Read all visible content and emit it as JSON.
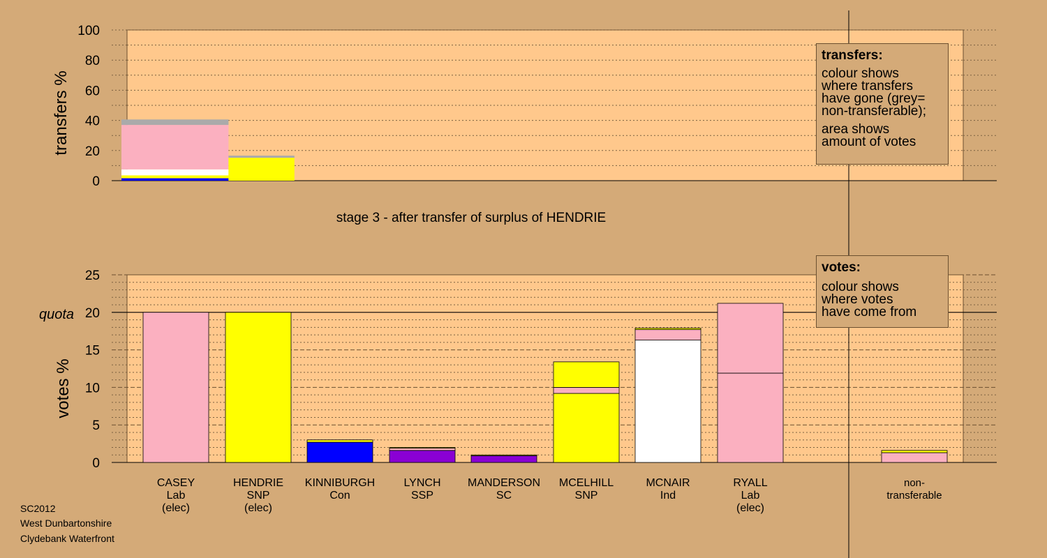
{
  "colors": {
    "background": "#d4aa78",
    "plot_background": "#ffc88c",
    "Lab": "#fbb0c0",
    "SNP": "#ffff00",
    "Con": "#0000ff",
    "SSP": "#8a00d4",
    "SC": "#8a00d4",
    "Ind": "#ffffff",
    "non_transferable": "#aaaaaa"
  },
  "chart_data": [
    {
      "type": "bar",
      "title": "stage 3 - after transfer of surplus of HENDRIE",
      "ylabel": "transfers %",
      "ylim": [
        0,
        100
      ],
      "yticks": [
        0,
        20,
        40,
        60,
        80,
        100
      ],
      "grid": true,
      "columns": [
        {
          "name": "transfer-column-1",
          "x": [
            0,
            1.3
          ],
          "segments": [
            {
              "value": 1.6,
              "color": "Con"
            },
            {
              "value": 1.9,
              "color": "SNP"
            },
            {
              "value": 4.0,
              "color": "Ind"
            },
            {
              "value": 29.5,
              "color": "Lab"
            },
            {
              "value": 3.6,
              "color": "non_transferable"
            }
          ]
        },
        {
          "name": "transfer-column-2",
          "x": [
            1.3,
            2.1
          ],
          "segments": [
            {
              "value": 15.2,
              "color": "SNP"
            },
            {
              "value": 1.4,
              "color": "non_transferable"
            }
          ]
        }
      ]
    },
    {
      "type": "bar",
      "ylabel": "votes %",
      "ylim": [
        0,
        25
      ],
      "yticks": [
        0,
        5,
        10,
        15,
        20,
        25
      ],
      "quota": 20,
      "quota_label": "quota",
      "grid": true,
      "categories": [
        {
          "name": "CASEY",
          "party": "Lab",
          "status": "(elec)",
          "segments": [
            {
              "value": 20.0,
              "color": "Lab"
            }
          ]
        },
        {
          "name": "HENDRIE",
          "party": "SNP",
          "status": "(elec)",
          "segments": [
            {
              "value": 20.0,
              "color": "SNP"
            }
          ]
        },
        {
          "name": "KINNIBURGH",
          "party": "Con",
          "status": "",
          "segments": [
            {
              "value": 2.7,
              "color": "Con"
            },
            {
              "value": 0.3,
              "color": "SNP"
            }
          ]
        },
        {
          "name": "LYNCH",
          "party": "SSP",
          "status": "",
          "segments": [
            {
              "value": 1.6,
              "color": "SSP"
            },
            {
              "value": 0.3,
              "color": "Lab"
            },
            {
              "value": 0.1,
              "color": "SNP"
            }
          ]
        },
        {
          "name": "MANDERSON",
          "party": "SC",
          "status": "",
          "segments": [
            {
              "value": 0.9,
              "color": "SC"
            },
            {
              "value": 0.1,
              "color": "SNP"
            }
          ]
        },
        {
          "name": "MCELHILL",
          "party": "SNP",
          "status": "",
          "segments": [
            {
              "value": 9.2,
              "color": "SNP"
            },
            {
              "value": 0.8,
              "color": "Lab"
            },
            {
              "value": 3.4,
              "color": "SNP"
            }
          ]
        },
        {
          "name": "MCNAIR",
          "party": "Ind",
          "status": "",
          "segments": [
            {
              "value": 16.3,
              "color": "Ind"
            },
            {
              "value": 1.4,
              "color": "Lab"
            },
            {
              "value": 0.2,
              "color": "SNP"
            }
          ]
        },
        {
          "name": "RYALL",
          "party": "Lab",
          "status": "(elec)",
          "segments": [
            {
              "value": 11.9,
              "color": "Lab"
            },
            {
              "value": 9.3,
              "color": "Lab"
            }
          ]
        },
        {
          "name": "non-",
          "party": "transferable",
          "status": "",
          "segments": [
            {
              "value": 1.3,
              "color": "Lab"
            },
            {
              "value": 0.3,
              "color": "SNP"
            }
          ]
        }
      ]
    }
  ],
  "legend_transfers": {
    "title": "transfers:",
    "lines": [
      "colour shows",
      "where transfers",
      "have gone (grey=",
      "non-transferable);",
      "area shows",
      "amount of votes"
    ]
  },
  "legend_votes": {
    "title": "votes:",
    "lines": [
      "colour shows",
      "where votes",
      "have come from"
    ]
  },
  "footer": [
    "SC2012",
    "West Dunbartonshire",
    "Clydebank Waterfront"
  ]
}
